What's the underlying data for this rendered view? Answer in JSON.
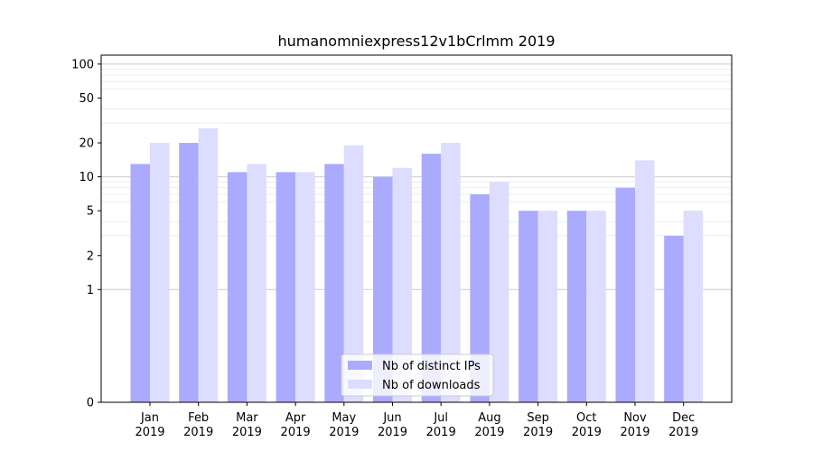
{
  "chart_data": {
    "type": "bar",
    "title": "humanomniexpress12v1bCrlmm 2019",
    "xlabel": "",
    "ylabel": "",
    "yscale": "symlog",
    "ylim": [
      0,
      120
    ],
    "yticks": [
      0,
      1,
      2,
      5,
      10,
      20,
      50,
      100
    ],
    "grid": true,
    "legend_position": "lower-center",
    "categories": [
      [
        "Jan",
        "2019"
      ],
      [
        "Feb",
        "2019"
      ],
      [
        "Mar",
        "2019"
      ],
      [
        "Apr",
        "2019"
      ],
      [
        "May",
        "2019"
      ],
      [
        "Jun",
        "2019"
      ],
      [
        "Jul",
        "2019"
      ],
      [
        "Aug",
        "2019"
      ],
      [
        "Sep",
        "2019"
      ],
      [
        "Oct",
        "2019"
      ],
      [
        "Nov",
        "2019"
      ],
      [
        "Dec",
        "2019"
      ]
    ],
    "series": [
      {
        "name": "Nb of distinct IPs",
        "color": "#aaaaff",
        "values": [
          13,
          20,
          11,
          11,
          13,
          10,
          16,
          7,
          5,
          5,
          8,
          3
        ]
      },
      {
        "name": "Nb of downloads",
        "color": "#ddddff",
        "values": [
          20,
          27,
          13,
          11,
          19,
          12,
          20,
          9,
          5,
          5,
          14,
          5
        ]
      }
    ]
  }
}
